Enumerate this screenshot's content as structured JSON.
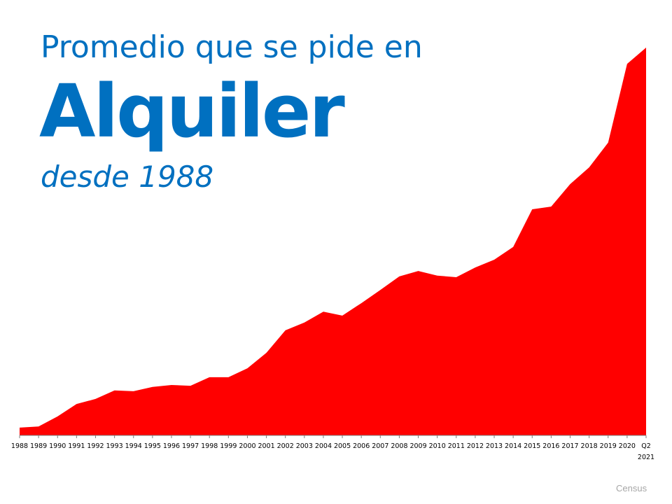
{
  "title": {
    "line1": "Promedio que se pide en",
    "line2": "Alquiler",
    "line3": "desde 1988"
  },
  "source": "Census",
  "colors": {
    "area": "#ff0000",
    "title": "#0070c0"
  },
  "chart_data": {
    "type": "area",
    "title": "Promedio que se pide en Alquiler desde 1988",
    "xlabel": "",
    "ylabel": "",
    "y_axis_shown": false,
    "grid": false,
    "legend": "none",
    "ylim": [
      0,
      100
    ],
    "categories": [
      "1988",
      "1989",
      "1990",
      "1991",
      "1992",
      "1993",
      "1994",
      "1995",
      "1996",
      "1997",
      "1998",
      "1999",
      "2000",
      "2001",
      "2002",
      "2003",
      "2004",
      "2005",
      "2006",
      "2007",
      "2008",
      "2009",
      "2010",
      "2011",
      "2012",
      "2013",
      "2014",
      "2015",
      "2016",
      "2017",
      "2018",
      "2019",
      "2020",
      "Q2 2021"
    ],
    "values": [
      2.0,
      2.3,
      4.9,
      8.1,
      9.4,
      11.6,
      11.4,
      12.5,
      13.0,
      12.8,
      15.0,
      15.0,
      17.3,
      21.3,
      27.1,
      29.1,
      31.9,
      30.9,
      34.1,
      37.5,
      41.0,
      42.4,
      41.2,
      40.8,
      43.3,
      45.3,
      48.6,
      58.3,
      59.0,
      64.8,
      69.1,
      75.5,
      95.8,
      100
    ]
  }
}
